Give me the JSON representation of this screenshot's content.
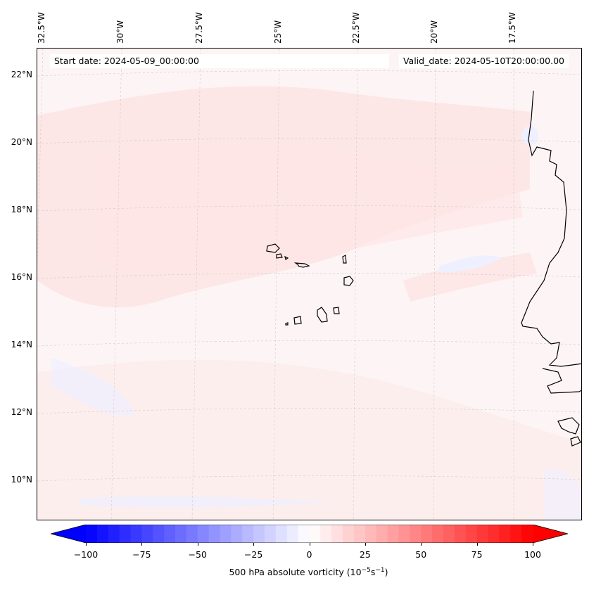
{
  "header": {
    "start_date": "Start date: 2024-05-09_00:00:00",
    "valid_date": "Valid_date: 2024-05-10T20:00:00.00"
  },
  "map": {
    "longitude_labels": [
      "32.5°W",
      "30°W",
      "27.5°W",
      "25°W",
      "22.5°W",
      "20°W",
      "17.5°W"
    ],
    "latitude_labels": [
      "22°N",
      "20°N",
      "18°N",
      "16°N",
      "14°N",
      "12°N",
      "10°N"
    ],
    "colors": {
      "background": "#fdf5f5",
      "light_red": "#fde6e6",
      "light_blue": "#eef0ff",
      "gridline": "#cccccc",
      "coast": "#000000"
    }
  },
  "colorbar": {
    "label_prefix": "500 hPa absolute vorticity (10",
    "label_exp1": "−5",
    "label_mid": "s",
    "label_exp2": "−1",
    "label_suffix": ")",
    "ticks": [
      "−100",
      "−75",
      "−50",
      "−25",
      "0",
      "25",
      "50",
      "75",
      "100"
    ],
    "min": -100,
    "max": 100,
    "colormap": "bwr",
    "low_color": "#0000ff",
    "mid_color": "#ffffff",
    "high_color": "#ff0000"
  }
}
